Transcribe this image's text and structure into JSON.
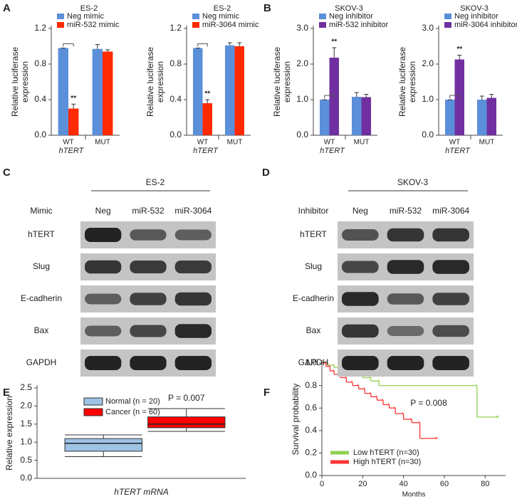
{
  "chart_data": [
    {
      "type": "bar",
      "panel": "A",
      "title": "ES-2",
      "ylabel": [
        "Relative luciferase",
        "expression"
      ],
      "xlabel": "hTERT",
      "categories": [
        "WT",
        "MUT"
      ],
      "series": [
        {
          "name": "Neg mimic",
          "color": "#5b8fd9",
          "values": [
            0.98,
            0.97
          ],
          "errors": [
            0,
            0.05
          ]
        },
        {
          "name": "miR-532 mimic",
          "color": "#ff2a00",
          "values": [
            0.3,
            0.94
          ],
          "errors": [
            0.05,
            0.02
          ]
        }
      ],
      "ylim": [
        0,
        1.2
      ],
      "yticks": [
        {
          "value": 0,
          "label": "0.0"
        },
        0.4,
        0.8,
        1.2
      ],
      "annotation": "**"
    },
    {
      "type": "bar",
      "title": "ES-2",
      "ylabel": [
        "Relative luciferase",
        "expression"
      ],
      "xlabel": "hTERT",
      "categories": [
        "WT",
        "MUT"
      ],
      "series": [
        {
          "name": "Neg mimic",
          "color": "#5b8fd9",
          "values": [
            0.98,
            1.01
          ],
          "errors": [
            0,
            0.03
          ]
        },
        {
          "name": "miR-3064 mimic",
          "color": "#ff2a00",
          "values": [
            0.36,
            1.0
          ],
          "errors": [
            0.04,
            0.04
          ]
        }
      ],
      "ylim": [
        0,
        1.2
      ],
      "yticks": [
        {
          "value": 0,
          "label": "0.0"
        },
        0.4,
        0.8,
        1.2
      ],
      "annotation": "**"
    },
    {
      "type": "bar",
      "panel": "B",
      "title": "SKOV-3",
      "ylabel": [
        "Relative luciferase",
        "expression"
      ],
      "xlabel": "hTERT",
      "categories": [
        "WT",
        "MUT"
      ],
      "series": [
        {
          "name": "Neg inhibitor",
          "color": "#5b8fd9",
          "values": [
            1.0,
            1.08
          ],
          "errors": [
            0,
            0.12
          ]
        },
        {
          "name": "miR-532 inhibitor",
          "color": "#7030a0",
          "values": [
            2.18,
            1.07
          ],
          "errors": [
            0.28,
            0.08
          ]
        }
      ],
      "ylim": [
        0,
        3
      ],
      "yticks": [
        {
          "value": 0,
          "label": "0.0"
        },
        {
          "value": 1,
          "label": "1.0"
        },
        {
          "value": 2,
          "label": "2.0"
        },
        {
          "value": 3,
          "label": "3.0"
        }
      ],
      "annotation": "**"
    },
    {
      "type": "bar",
      "title": "SKOV-3",
      "ylabel": [
        "Relative luciferase",
        "expression"
      ],
      "xlabel": "hTERT",
      "categories": [
        "WT",
        "MUT"
      ],
      "series": [
        {
          "name": "Neg inhibitor",
          "color": "#5b8fd9",
          "values": [
            1.0,
            1.0
          ],
          "errors": [
            0,
            0.1
          ]
        },
        {
          "name": "miR-3064 inhibitor",
          "color": "#7030a0",
          "values": [
            2.13,
            1.05
          ],
          "errors": [
            0.12,
            0.1
          ]
        }
      ],
      "ylim": [
        0,
        3
      ],
      "yticks": [
        {
          "value": 0,
          "label": "0.0"
        },
        {
          "value": 1,
          "label": "1.0"
        },
        {
          "value": 2,
          "label": "2.0"
        },
        {
          "value": 3,
          "label": "3.0"
        }
      ],
      "annotation": "**"
    },
    {
      "type": "box",
      "panel": "E",
      "ylabel": "Relative expression",
      "xlabel": "hTERT mRNA",
      "boxes": [
        {
          "name": "Normal (n = 20)",
          "color": "#9dc3e6",
          "min": 0.6,
          "q1": 0.75,
          "median": 0.97,
          "q3": 1.1,
          "max": 1.2
        },
        {
          "name": "Cancer (n = 60)",
          "color": "#ff0000",
          "min": 1.3,
          "q1": 1.4,
          "median": 1.5,
          "q3": 1.7,
          "max": 1.93
        }
      ],
      "ylim": [
        0,
        2.5
      ],
      "yticks": [
        {
          "value": 0,
          "label": "0.0"
        },
        {
          "value": 0.5,
          "label": "0.5"
        },
        {
          "value": 1,
          "label": "1.0"
        },
        {
          "value": 1.5,
          "label": "1.5"
        },
        {
          "value": 2,
          "label": "2.0"
        },
        {
          "value": 2.5,
          "label": "2.5"
        }
      ],
      "annotation": "P = 0.007"
    },
    {
      "type": "step",
      "panel": "F",
      "ylabel": "Survival probability",
      "xlabel": "Months",
      "series": [
        {
          "name": "Low hTERT (n=30)",
          "color": "#92d050",
          "x": [
            0,
            3,
            6,
            10,
            15,
            20,
            24,
            28,
            76,
            86
          ],
          "values": [
            1,
            0.98,
            0.96,
            0.93,
            0.9,
            0.87,
            0.84,
            0.8,
            0.52,
            0.52
          ]
        },
        {
          "name": "High hTERT (n=30)",
          "color": "#ff3333",
          "x": [
            0,
            2,
            4,
            6,
            9,
            12,
            15,
            18,
            21,
            24,
            27,
            30,
            33,
            36,
            40,
            44,
            48,
            56
          ],
          "values": [
            1,
            0.97,
            0.93,
            0.9,
            0.87,
            0.83,
            0.8,
            0.77,
            0.73,
            0.7,
            0.67,
            0.63,
            0.6,
            0.55,
            0.5,
            0.47,
            0.33,
            0.33
          ]
        }
      ],
      "xlim": [
        0,
        90
      ],
      "xticks": [
        0,
        20,
        40,
        60,
        80
      ],
      "ylim": [
        0,
        1
      ],
      "yticks": [
        {
          "value": 0,
          "label": "0.0"
        },
        0.2,
        0.4,
        0.6,
        0.8,
        {
          "value": 1,
          "label": "1.0"
        }
      ],
      "annotation": "P = 0.008"
    }
  ],
  "blots": [
    {
      "panel": "C",
      "title": "ES-2",
      "row_header": "Mimic",
      "lanes": [
        "Neg",
        "miR-532",
        "miR-3064"
      ],
      "proteins": [
        "hTERT",
        "Slug",
        "E-cadherin",
        "Bax",
        "GAPDH"
      ]
    },
    {
      "panel": "D",
      "title": "SKOV-3",
      "row_header": "Inhibitor",
      "lanes": [
        "Neg",
        "miR-532",
        "miR-3064"
      ],
      "proteins": [
        "hTERT",
        "Slug",
        "E-cadherin",
        "Bax",
        "GAPDH"
      ]
    }
  ]
}
